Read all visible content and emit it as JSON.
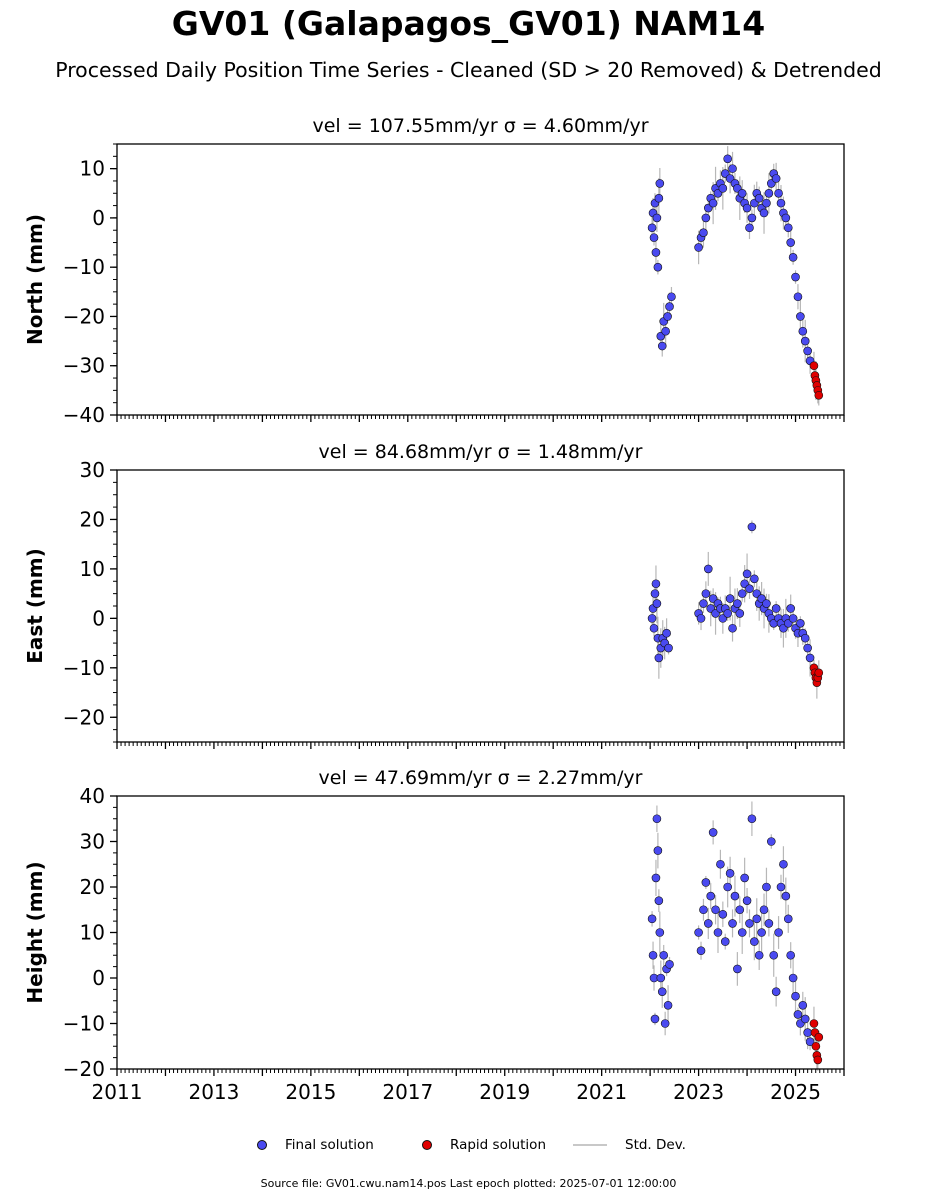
{
  "header": {
    "title": "GV01 (Galapagos_GV01) NAM14",
    "subtitle": "Processed Daily Position Time Series - Cleaned (SD > 20 Removed) & Detrended"
  },
  "legend": {
    "final_label": "Final solution",
    "rapid_label": "Rapid solution",
    "std_label": "Std. Dev."
  },
  "footer": {
    "text": "Source file: GV01.cwu.nam14.pos  Last epoch plotted: 2025-07-01 12:00:00"
  },
  "colors": {
    "final": "#4a4af0",
    "rapid": "#e00000",
    "std_dev": "#c8c8c8",
    "marker_edge": "#111111"
  },
  "chart_data": [
    {
      "type": "scatter",
      "title": "vel = 107.55mm/yr   σ = 4.60mm/yr",
      "ylabel": "North (mm)",
      "xlabel": "",
      "xlim": [
        2011,
        2026
      ],
      "ylim": [
        -40,
        15
      ],
      "yticks": [
        10,
        0,
        -10,
        -20,
        -30,
        -40
      ],
      "yminor_step": 2.5,
      "grid": false,
      "series": [
        {
          "name": "Final solution",
          "color": "#4a4af0",
          "points": [
            [
              2022.04,
              -2
            ],
            [
              2022.06,
              1
            ],
            [
              2022.08,
              -4
            ],
            [
              2022.1,
              3
            ],
            [
              2022.12,
              -7
            ],
            [
              2022.14,
              0
            ],
            [
              2022.16,
              -10
            ],
            [
              2022.18,
              4
            ],
            [
              2022.2,
              7
            ],
            [
              2022.22,
              -24
            ],
            [
              2022.25,
              -26
            ],
            [
              2022.28,
              -21
            ],
            [
              2022.32,
              -23
            ],
            [
              2022.36,
              -20
            ],
            [
              2022.4,
              -18
            ],
            [
              2022.44,
              -16
            ],
            [
              2023.0,
              -6
            ],
            [
              2023.05,
              -4
            ],
            [
              2023.1,
              -3
            ],
            [
              2023.15,
              0
            ],
            [
              2023.2,
              2
            ],
            [
              2023.25,
              4
            ],
            [
              2023.3,
              3
            ],
            [
              2023.35,
              6
            ],
            [
              2023.4,
              5
            ],
            [
              2023.45,
              7
            ],
            [
              2023.5,
              6
            ],
            [
              2023.55,
              9
            ],
            [
              2023.6,
              12
            ],
            [
              2023.65,
              8
            ],
            [
              2023.7,
              10
            ],
            [
              2023.75,
              7
            ],
            [
              2023.8,
              6
            ],
            [
              2023.85,
              4
            ],
            [
              2023.9,
              5
            ],
            [
              2023.95,
              3
            ],
            [
              2024.0,
              2
            ],
            [
              2024.05,
              -2
            ],
            [
              2024.1,
              0
            ],
            [
              2024.15,
              3
            ],
            [
              2024.2,
              5
            ],
            [
              2024.25,
              4
            ],
            [
              2024.3,
              2
            ],
            [
              2024.35,
              1
            ],
            [
              2024.4,
              3
            ],
            [
              2024.45,
              5
            ],
            [
              2024.5,
              7
            ],
            [
              2024.55,
              9
            ],
            [
              2024.6,
              8
            ],
            [
              2024.65,
              5
            ],
            [
              2024.7,
              3
            ],
            [
              2024.75,
              1
            ],
            [
              2024.8,
              0
            ],
            [
              2024.85,
              -2
            ],
            [
              2024.9,
              -5
            ],
            [
              2024.95,
              -8
            ],
            [
              2025.0,
              -12
            ],
            [
              2025.05,
              -16
            ],
            [
              2025.1,
              -20
            ],
            [
              2025.15,
              -23
            ],
            [
              2025.2,
              -25
            ],
            [
              2025.25,
              -27
            ],
            [
              2025.3,
              -29
            ]
          ]
        },
        {
          "name": "Rapid solution",
          "color": "#e00000",
          "points": [
            [
              2025.38,
              -30
            ],
            [
              2025.4,
              -32
            ],
            [
              2025.42,
              -33
            ],
            [
              2025.44,
              -34
            ],
            [
              2025.46,
              -35
            ],
            [
              2025.48,
              -36
            ]
          ]
        }
      ]
    },
    {
      "type": "scatter",
      "title": "vel = 84.68mm/yr   σ = 1.48mm/yr",
      "ylabel": "East (mm)",
      "xlabel": "",
      "xlim": [
        2011,
        2026
      ],
      "ylim": [
        -25,
        30
      ],
      "yticks": [
        30,
        20,
        10,
        0,
        -10,
        -20
      ],
      "yminor_step": 2.5,
      "grid": false,
      "series": [
        {
          "name": "Final solution",
          "color": "#4a4af0",
          "points": [
            [
              2022.04,
              0
            ],
            [
              2022.06,
              2
            ],
            [
              2022.08,
              -2
            ],
            [
              2022.1,
              5
            ],
            [
              2022.12,
              7
            ],
            [
              2022.14,
              3
            ],
            [
              2022.16,
              -4
            ],
            [
              2022.18,
              -8
            ],
            [
              2022.22,
              -6
            ],
            [
              2022.26,
              -4
            ],
            [
              2022.3,
              -5
            ],
            [
              2022.34,
              -3
            ],
            [
              2022.38,
              -6
            ],
            [
              2023.0,
              1
            ],
            [
              2023.05,
              0
            ],
            [
              2023.1,
              3
            ],
            [
              2023.15,
              5
            ],
            [
              2023.2,
              10
            ],
            [
              2023.25,
              2
            ],
            [
              2023.3,
              4
            ],
            [
              2023.35,
              1
            ],
            [
              2023.4,
              3
            ],
            [
              2023.45,
              2
            ],
            [
              2023.5,
              0
            ],
            [
              2023.55,
              2
            ],
            [
              2023.6,
              1
            ],
            [
              2023.65,
              4
            ],
            [
              2023.7,
              -2
            ],
            [
              2023.75,
              2
            ],
            [
              2023.8,
              3
            ],
            [
              2023.85,
              1
            ],
            [
              2023.9,
              5
            ],
            [
              2023.95,
              7
            ],
            [
              2024.0,
              9
            ],
            [
              2024.05,
              6
            ],
            [
              2024.1,
              18.5
            ],
            [
              2024.15,
              8
            ],
            [
              2024.2,
              5
            ],
            [
              2024.25,
              3
            ],
            [
              2024.3,
              4
            ],
            [
              2024.35,
              2
            ],
            [
              2024.4,
              3
            ],
            [
              2024.45,
              1
            ],
            [
              2024.5,
              0
            ],
            [
              2024.55,
              -1
            ],
            [
              2024.6,
              2
            ],
            [
              2024.65,
              0
            ],
            [
              2024.7,
              -1
            ],
            [
              2024.75,
              -2
            ],
            [
              2024.8,
              0
            ],
            [
              2024.85,
              -1
            ],
            [
              2024.9,
              2
            ],
            [
              2024.95,
              0
            ],
            [
              2025.0,
              -2
            ],
            [
              2025.05,
              -3
            ],
            [
              2025.1,
              -1
            ],
            [
              2025.15,
              -3
            ],
            [
              2025.2,
              -4
            ],
            [
              2025.25,
              -6
            ],
            [
              2025.3,
              -8
            ]
          ]
        },
        {
          "name": "Rapid solution",
          "color": "#e00000",
          "points": [
            [
              2025.38,
              -10
            ],
            [
              2025.4,
              -11
            ],
            [
              2025.42,
              -12
            ],
            [
              2025.44,
              -13
            ],
            [
              2025.46,
              -12
            ],
            [
              2025.48,
              -11
            ]
          ]
        }
      ]
    },
    {
      "type": "scatter",
      "title": "vel = 47.69mm/yr   σ = 2.27mm/yr",
      "ylabel": "Height (mm)",
      "xlabel": "",
      "xlim": [
        2011,
        2026
      ],
      "ylim": [
        -20,
        40
      ],
      "yticks": [
        40,
        30,
        20,
        10,
        0,
        -10,
        -20
      ],
      "yminor_step": 2.5,
      "xticks": [
        2011,
        2013,
        2015,
        2017,
        2019,
        2021,
        2023,
        2025
      ],
      "grid": false,
      "series": [
        {
          "name": "Final solution",
          "color": "#4a4af0",
          "points": [
            [
              2022.04,
              13
            ],
            [
              2022.06,
              5
            ],
            [
              2022.08,
              0
            ],
            [
              2022.1,
              -9
            ],
            [
              2022.12,
              22
            ],
            [
              2022.14,
              35
            ],
            [
              2022.16,
              28
            ],
            [
              2022.18,
              17
            ],
            [
              2022.2,
              10
            ],
            [
              2022.22,
              0
            ],
            [
              2022.25,
              -3
            ],
            [
              2022.28,
              5
            ],
            [
              2022.31,
              -10
            ],
            [
              2022.34,
              2
            ],
            [
              2022.37,
              -6
            ],
            [
              2022.4,
              3
            ],
            [
              2023.0,
              10
            ],
            [
              2023.05,
              6
            ],
            [
              2023.1,
              15
            ],
            [
              2023.15,
              21
            ],
            [
              2023.2,
              12
            ],
            [
              2023.25,
              18
            ],
            [
              2023.3,
              32
            ],
            [
              2023.35,
              15
            ],
            [
              2023.4,
              10
            ],
            [
              2023.45,
              25
            ],
            [
              2023.5,
              14
            ],
            [
              2023.55,
              8
            ],
            [
              2023.6,
              20
            ],
            [
              2023.65,
              23
            ],
            [
              2023.7,
              12
            ],
            [
              2023.75,
              18
            ],
            [
              2023.8,
              2
            ],
            [
              2023.85,
              15
            ],
            [
              2023.9,
              10
            ],
            [
              2023.95,
              22
            ],
            [
              2024.0,
              17
            ],
            [
              2024.05,
              12
            ],
            [
              2024.1,
              35
            ],
            [
              2024.15,
              8
            ],
            [
              2024.2,
              13
            ],
            [
              2024.25,
              5
            ],
            [
              2024.3,
              10
            ],
            [
              2024.35,
              15
            ],
            [
              2024.4,
              20
            ],
            [
              2024.45,
              12
            ],
            [
              2024.5,
              30
            ],
            [
              2024.55,
              5
            ],
            [
              2024.6,
              -3
            ],
            [
              2024.65,
              10
            ],
            [
              2024.7,
              20
            ],
            [
              2024.75,
              25
            ],
            [
              2024.8,
              18
            ],
            [
              2024.85,
              13
            ],
            [
              2024.9,
              5
            ],
            [
              2024.95,
              0
            ],
            [
              2025.0,
              -4
            ],
            [
              2025.05,
              -8
            ],
            [
              2025.1,
              -10
            ],
            [
              2025.15,
              -6
            ],
            [
              2025.2,
              -9
            ],
            [
              2025.25,
              -12
            ],
            [
              2025.3,
              -14
            ]
          ]
        },
        {
          "name": "Rapid solution",
          "color": "#e00000",
          "points": [
            [
              2025.38,
              -10
            ],
            [
              2025.4,
              -12
            ],
            [
              2025.42,
              -15
            ],
            [
              2025.44,
              -17
            ],
            [
              2025.46,
              -18
            ],
            [
              2025.48,
              -13
            ]
          ]
        }
      ]
    }
  ]
}
